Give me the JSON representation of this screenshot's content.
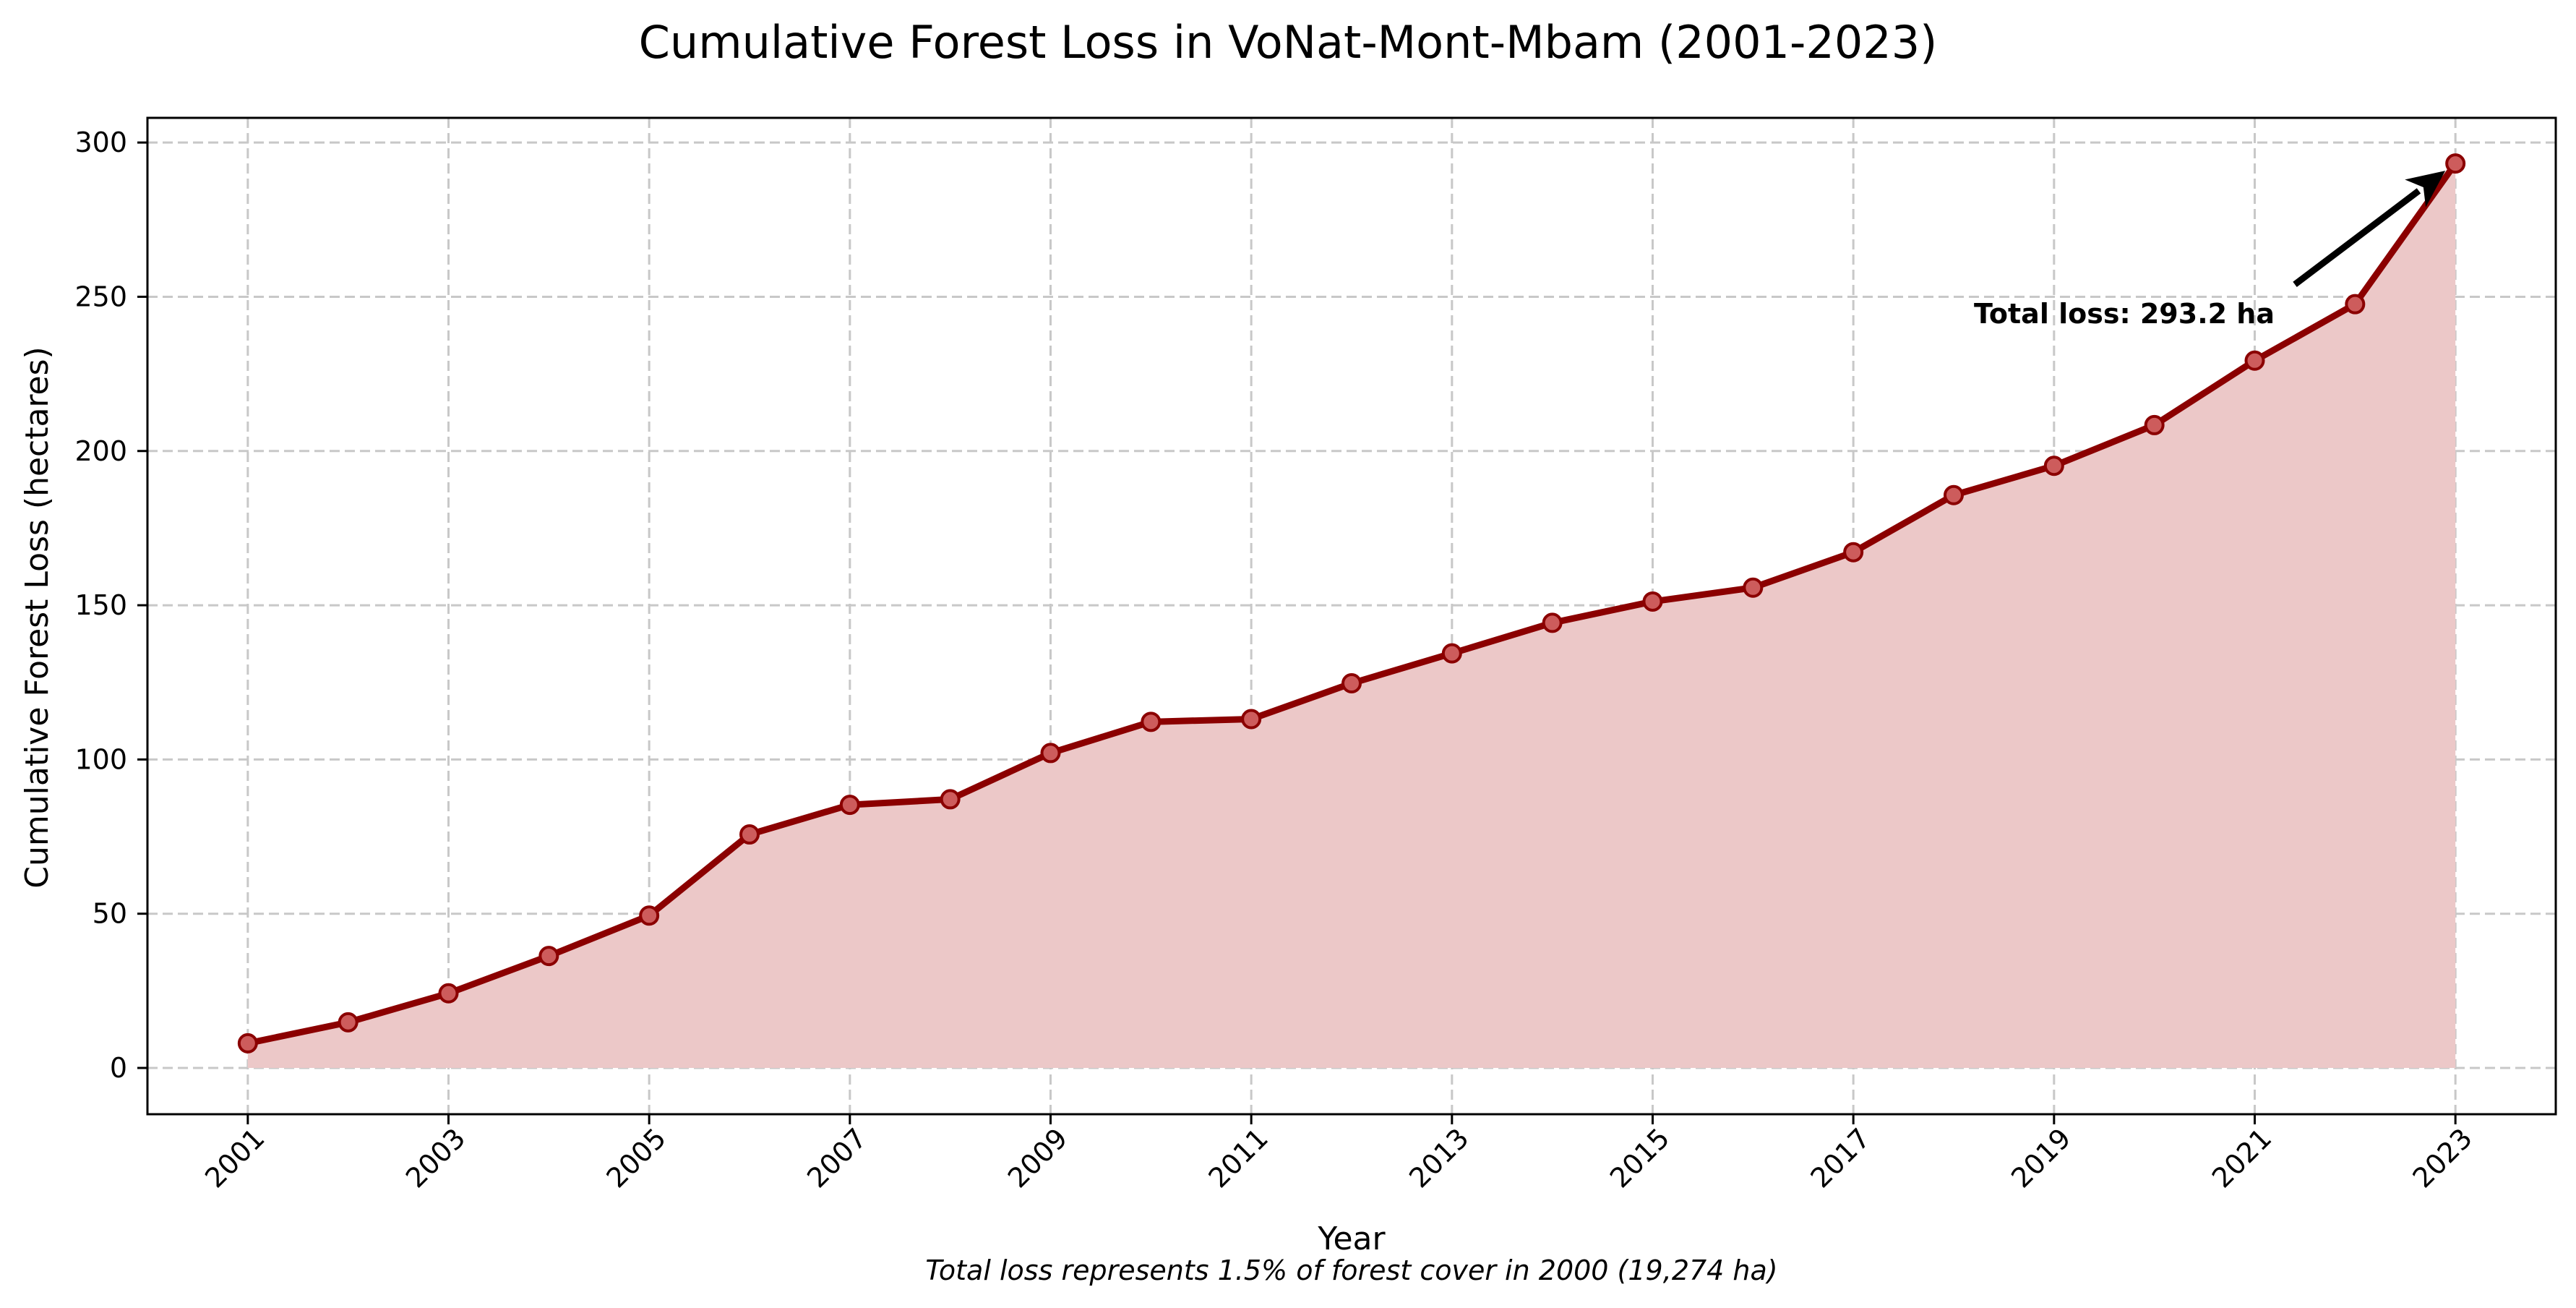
{
  "chart_data": {
    "type": "area",
    "title": "Cumulative Forest Loss in VoNat-Mont-Mbam (2001-2023)",
    "xlabel": "Year",
    "ylabel": "Cumulative Forest Loss (hectares)",
    "x": [
      2001,
      2002,
      2003,
      2004,
      2005,
      2006,
      2007,
      2008,
      2009,
      2010,
      2011,
      2012,
      2013,
      2014,
      2015,
      2016,
      2017,
      2018,
      2019,
      2020,
      2021,
      2022,
      2023
    ],
    "values": [
      8,
      14.8,
      24.2,
      36.3,
      49.4,
      75.7,
      85.3,
      87.1,
      102.1,
      112.2,
      113.1,
      124.7,
      134.4,
      144.3,
      151.2,
      155.7,
      167.2,
      185.7,
      195.2,
      208.4,
      229.3,
      247.6,
      293.2
    ],
    "x_ticks": [
      "2001",
      "2003",
      "2005",
      "2007",
      "2009",
      "2011",
      "2013",
      "2015",
      "2017",
      "2019",
      "2021",
      "2023"
    ],
    "y_ticks": [
      "0",
      "50",
      "100",
      "150",
      "200",
      "250",
      "300"
    ],
    "xlim": [
      2000,
      2024
    ],
    "ylim": [
      -15,
      308
    ],
    "grid": true,
    "line_color": "#8b0000",
    "marker_color": "#cd5c5c",
    "fill_color": "#ecc8c8",
    "annotation": {
      "text": "Total loss: 293.2 ha",
      "x": 2023,
      "y": 293.2
    },
    "footnote": "Total loss represents 1.5% of forest cover in 2000 (19,274 ha)"
  }
}
